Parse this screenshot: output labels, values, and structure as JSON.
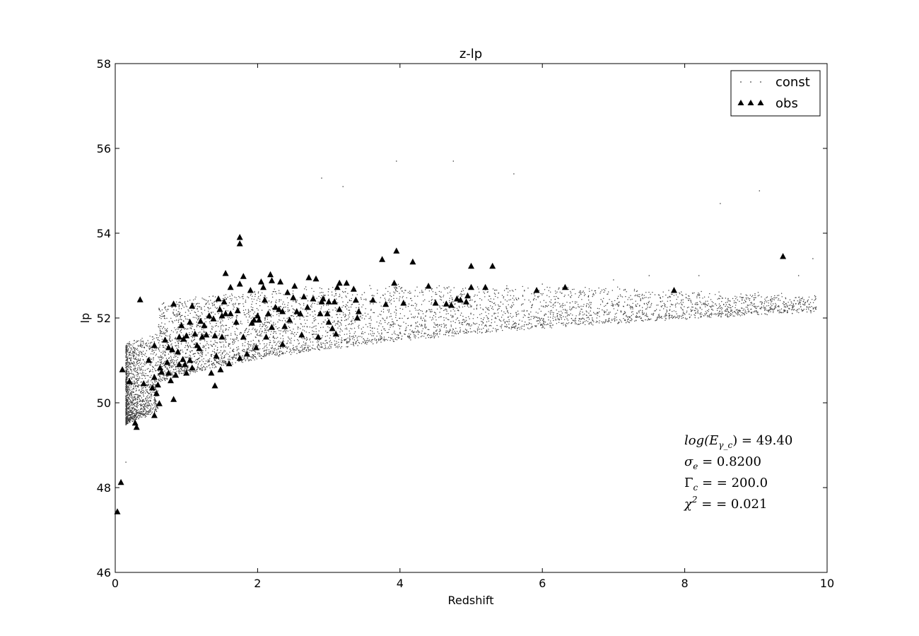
{
  "chart_data": {
    "type": "scatter",
    "title": "z-lp",
    "xlabel": "Redshift",
    "ylabel": "lp",
    "xlim": [
      0,
      10
    ],
    "ylim": [
      46,
      58
    ],
    "xticks": [
      "0",
      "2",
      "4",
      "6",
      "8",
      "10"
    ],
    "yticks": [
      "46",
      "48",
      "50",
      "52",
      "54",
      "56",
      "58"
    ],
    "grid": false,
    "legend_position": "top-right",
    "colors": {
      "const": "#000000",
      "obs": "#000000"
    },
    "const_cloud_model": {
      "lp_floor": "50.1 + 2.0*log10(1+z) approx",
      "points": 6000
    },
    "series": [
      {
        "name": "const",
        "marker": "dot",
        "points": [
          [
            0.9,
            51.6
          ],
          [
            1.5,
            52.3
          ],
          [
            2.1,
            52.0
          ],
          [
            2.5,
            52.4
          ],
          [
            3.0,
            52.2
          ],
          [
            3.5,
            52.6
          ],
          [
            4.0,
            52.5
          ],
          [
            4.5,
            52.6
          ],
          [
            5.0,
            52.7
          ],
          [
            5.5,
            52.7
          ],
          [
            6.0,
            52.8
          ],
          [
            7.0,
            52.9
          ],
          [
            7.5,
            53.0
          ],
          [
            8.2,
            53.0
          ],
          [
            9.6,
            53.0
          ],
          [
            9.8,
            53.4
          ],
          [
            2.9,
            55.3
          ],
          [
            3.95,
            55.7
          ],
          [
            4.75,
            55.7
          ],
          [
            5.6,
            55.4
          ],
          [
            9.05,
            55.0
          ],
          [
            8.5,
            54.7
          ],
          [
            3.2,
            55.1
          ],
          [
            0.15,
            48.6
          ],
          [
            0.1,
            48.1
          ]
        ]
      },
      {
        "name": "obs",
        "marker": "triangle",
        "points": [
          [
            0.03,
            47.43
          ],
          [
            0.08,
            48.12
          ],
          [
            0.1,
            50.78
          ],
          [
            0.2,
            50.5
          ],
          [
            0.28,
            49.52
          ],
          [
            0.3,
            49.42
          ],
          [
            0.35,
            52.43
          ],
          [
            0.4,
            50.45
          ],
          [
            0.47,
            51.0
          ],
          [
            0.52,
            50.35
          ],
          [
            0.55,
            50.6
          ],
          [
            0.55,
            49.7
          ],
          [
            0.55,
            51.35
          ],
          [
            0.58,
            50.22
          ],
          [
            0.6,
            50.42
          ],
          [
            0.62,
            49.98
          ],
          [
            0.63,
            50.82
          ],
          [
            0.65,
            50.72
          ],
          [
            0.7,
            51.48
          ],
          [
            0.73,
            50.95
          ],
          [
            0.75,
            51.3
          ],
          [
            0.75,
            50.7
          ],
          [
            0.78,
            50.52
          ],
          [
            0.8,
            51.25
          ],
          [
            0.82,
            50.08
          ],
          [
            0.82,
            52.33
          ],
          [
            0.85,
            50.65
          ],
          [
            0.88,
            51.2
          ],
          [
            0.9,
            51.55
          ],
          [
            0.9,
            50.9
          ],
          [
            0.93,
            51.82
          ],
          [
            0.95,
            51.02
          ],
          [
            0.96,
            51.5
          ],
          [
            0.98,
            50.9
          ],
          [
            1.0,
            50.7
          ],
          [
            1.0,
            51.58
          ],
          [
            1.05,
            51.0
          ],
          [
            1.05,
            51.9
          ],
          [
            1.08,
            50.82
          ],
          [
            1.08,
            52.28
          ],
          [
            1.12,
            51.62
          ],
          [
            1.15,
            51.35
          ],
          [
            1.18,
            51.28
          ],
          [
            1.2,
            51.92
          ],
          [
            1.22,
            51.55
          ],
          [
            1.25,
            51.82
          ],
          [
            1.28,
            51.6
          ],
          [
            1.32,
            52.05
          ],
          [
            1.35,
            50.7
          ],
          [
            1.38,
            51.98
          ],
          [
            1.4,
            51.58
          ],
          [
            1.4,
            50.4
          ],
          [
            1.42,
            51.1
          ],
          [
            1.45,
            52.45
          ],
          [
            1.47,
            52.2
          ],
          [
            1.48,
            50.78
          ],
          [
            1.5,
            51.55
          ],
          [
            1.5,
            52.05
          ],
          [
            1.53,
            52.38
          ],
          [
            1.55,
            52.1
          ],
          [
            1.6,
            50.92
          ],
          [
            1.62,
            52.72
          ],
          [
            1.62,
            52.1
          ],
          [
            1.55,
            53.05
          ],
          [
            1.7,
            51.9
          ],
          [
            1.72,
            52.17
          ],
          [
            1.75,
            51.05
          ],
          [
            1.75,
            52.8
          ],
          [
            1.75,
            53.9
          ],
          [
            1.75,
            53.75
          ],
          [
            1.8,
            51.55
          ],
          [
            1.8,
            52.98
          ],
          [
            1.85,
            51.15
          ],
          [
            1.9,
            52.65
          ],
          [
            1.92,
            51.88
          ],
          [
            1.95,
            51.95
          ],
          [
            1.98,
            51.3
          ],
          [
            2.0,
            52.05
          ],
          [
            2.02,
            51.95
          ],
          [
            2.05,
            52.85
          ],
          [
            2.08,
            52.72
          ],
          [
            2.1,
            52.42
          ],
          [
            2.12,
            51.55
          ],
          [
            2.15,
            52.1
          ],
          [
            2.18,
            53.02
          ],
          [
            2.2,
            52.88
          ],
          [
            2.2,
            51.78
          ],
          [
            2.25,
            52.25
          ],
          [
            2.3,
            52.2
          ],
          [
            2.32,
            52.85
          ],
          [
            2.35,
            51.38
          ],
          [
            2.35,
            52.15
          ],
          [
            2.38,
            51.8
          ],
          [
            2.42,
            52.6
          ],
          [
            2.45,
            51.95
          ],
          [
            2.5,
            52.48
          ],
          [
            2.52,
            52.75
          ],
          [
            2.55,
            52.15
          ],
          [
            2.6,
            52.1
          ],
          [
            2.62,
            51.6
          ],
          [
            2.65,
            52.5
          ],
          [
            2.7,
            52.25
          ],
          [
            2.72,
            52.95
          ],
          [
            2.78,
            52.45
          ],
          [
            2.82,
            52.92
          ],
          [
            2.85,
            51.55
          ],
          [
            2.88,
            52.1
          ],
          [
            2.9,
            52.38
          ],
          [
            2.92,
            52.45
          ],
          [
            2.98,
            52.1
          ],
          [
            3.0,
            51.9
          ],
          [
            3.0,
            52.38
          ],
          [
            3.05,
            51.75
          ],
          [
            3.08,
            52.38
          ],
          [
            3.1,
            51.62
          ],
          [
            3.12,
            52.72
          ],
          [
            3.15,
            52.82
          ],
          [
            3.15,
            52.2
          ],
          [
            3.25,
            52.82
          ],
          [
            3.35,
            52.68
          ],
          [
            3.38,
            52.42
          ],
          [
            3.4,
            52.0
          ],
          [
            3.42,
            52.15
          ],
          [
            3.62,
            52.42
          ],
          [
            3.75,
            53.38
          ],
          [
            3.8,
            52.32
          ],
          [
            3.92,
            52.82
          ],
          [
            3.95,
            53.58
          ],
          [
            4.05,
            52.35
          ],
          [
            4.18,
            53.32
          ],
          [
            4.4,
            52.75
          ],
          [
            4.5,
            52.35
          ],
          [
            4.65,
            52.33
          ],
          [
            4.72,
            52.3
          ],
          [
            4.8,
            52.45
          ],
          [
            4.85,
            52.42
          ],
          [
            4.93,
            52.38
          ],
          [
            4.95,
            52.52
          ],
          [
            5.0,
            52.72
          ],
          [
            5.0,
            53.22
          ],
          [
            5.2,
            52.72
          ],
          [
            5.3,
            53.22
          ],
          [
            5.92,
            52.65
          ],
          [
            6.32,
            52.72
          ],
          [
            7.85,
            52.65
          ],
          [
            9.38,
            53.45
          ]
        ]
      }
    ],
    "annotations": [
      {
        "label": "log(E",
        "sub": "γ_c",
        "tail": ") = 49.40"
      },
      {
        "label": "σ",
        "sub": "e",
        "tail": " = 0.8200"
      },
      {
        "label": "Γ",
        "sub": "c",
        "tail": " = = 200.0"
      },
      {
        "label": "χ",
        "sup": "2",
        "tail": " = = 0.021"
      }
    ]
  }
}
